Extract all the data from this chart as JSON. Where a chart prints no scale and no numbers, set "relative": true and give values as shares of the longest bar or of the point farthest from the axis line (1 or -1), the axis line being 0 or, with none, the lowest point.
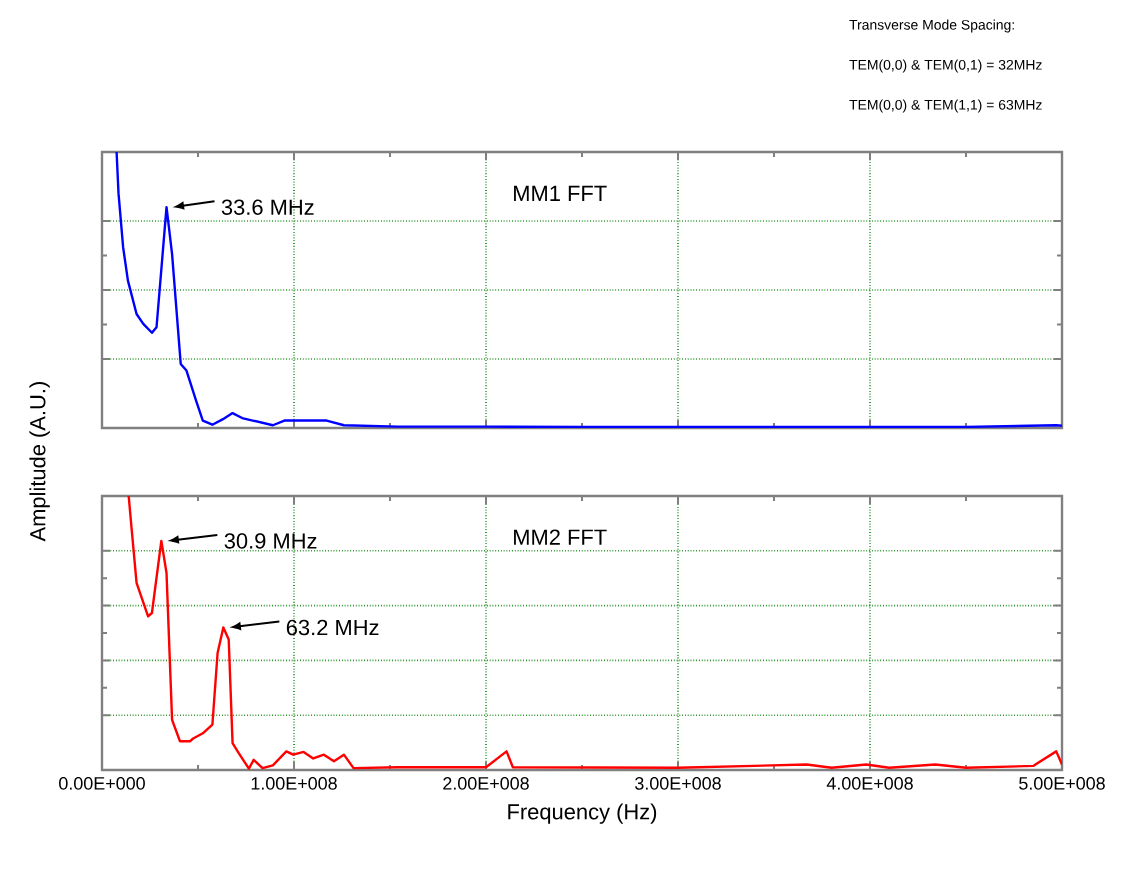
{
  "chart_data": [
    {
      "type": "line",
      "title": "MM1 FFT",
      "ylabel": "Amplitude (A.U.)",
      "relative": true,
      "grid": true,
      "tick_labels": false,
      "xlim": [
        0,
        500000000
      ],
      "xticks": [
        {
          "value": 0,
          "label": null
        },
        {
          "value": 100000000,
          "label": null
        },
        {
          "value": 200000000,
          "label": null
        },
        {
          "value": 300000000,
          "label": null
        },
        {
          "value": 400000000,
          "label": null
        },
        {
          "value": 500000000,
          "label": null
        }
      ],
      "annotations": [
        {
          "text": "33.6 MHz",
          "x": 33600000,
          "y": 0.8
        },
        "Transverse Mode Spacing:",
        "TEM(0,0) & TEM(0,1) = 32MHz",
        "TEM(0,0) & TEM(1,1) = 63MHz"
      ],
      "series": [
        {
          "color": "#0000ff",
          "x": [
            7600000,
            8600000,
            11000000,
            13500000,
            18000000,
            21500000,
            26000000,
            28400000,
            33600000,
            36500000,
            41000000,
            44000000,
            49000000,
            52500000,
            57500000,
            63000000,
            68000000,
            73000000,
            78500000,
            89000000,
            95000000,
            117000000,
            126000000,
            154000000,
            200000000,
            250000000,
            300000000,
            350000000,
            400000000,
            450000000,
            497000000,
            500000000
          ],
          "values": [
            1.0,
            0.85,
            0.655,
            0.534,
            0.413,
            0.377,
            0.345,
            0.365,
            0.8,
            0.63,
            0.232,
            0.208,
            0.099,
            0.027,
            0.012,
            0.032,
            0.054,
            0.036,
            0.027,
            0.01,
            0.027,
            0.027,
            0.01,
            0.005,
            0.005,
            0.004,
            0.004,
            0.004,
            0.004,
            0.004,
            0.01,
            0.008
          ]
        }
      ]
    },
    {
      "type": "line",
      "title": "MM2 FFT",
      "xlabel": "Frequency (Hz)",
      "relative": true,
      "grid": true,
      "tick_labels": "x",
      "xlim": [
        0,
        500000000
      ],
      "xticks": [
        {
          "value": 0,
          "label": "0.00E+000"
        },
        {
          "value": 100000000,
          "label": "1.00E+008"
        },
        {
          "value": 200000000,
          "label": "2.00E+008"
        },
        {
          "value": 300000000,
          "label": "3.00E+008"
        },
        {
          "value": 400000000,
          "label": "4.00E+008"
        },
        {
          "value": 500000000,
          "label": "5.00E+008"
        }
      ],
      "annotations": [
        {
          "text": "30.9 MHz",
          "x": 30900000,
          "y": 0.836
        },
        {
          "text": "63.2 MHz",
          "x": 63200000,
          "y": 0.52
        }
      ],
      "series": [
        {
          "color": "#ff0000",
          "x": [
            13900000,
            15300000,
            18000000,
            24000000,
            26000000,
            30900000,
            33600000,
            36500000,
            40600000,
            45800000,
            47500000,
            52500000,
            57500000,
            60200000,
            63200000,
            66000000,
            68000000,
            71300000,
            76500000,
            79000000,
            83600000,
            89000000,
            96000000,
            99600000,
            105000000,
            110000000,
            115600000,
            120800000,
            126000000,
            131000000,
            154000000,
            200000000,
            210700000,
            214000000,
            300000000,
            367000000,
            380000000,
            398000000,
            410000000,
            434000000,
            450000000,
            485000000,
            497000000,
            500000000
          ],
          "values": [
            1.0,
            0.89,
            0.683,
            0.561,
            0.573,
            0.836,
            0.719,
            0.183,
            0.105,
            0.105,
            0.115,
            0.134,
            0.166,
            0.427,
            0.52,
            0.476,
            0.098,
            0.061,
            0.005,
            0.037,
            0.007,
            0.017,
            0.068,
            0.056,
            0.066,
            0.042,
            0.056,
            0.032,
            0.056,
            0.007,
            0.01,
            0.01,
            0.068,
            0.01,
            0.008,
            0.02,
            0.008,
            0.02,
            0.008,
            0.02,
            0.008,
            0.015,
            0.068,
            0.02
          ]
        }
      ]
    }
  ]
}
